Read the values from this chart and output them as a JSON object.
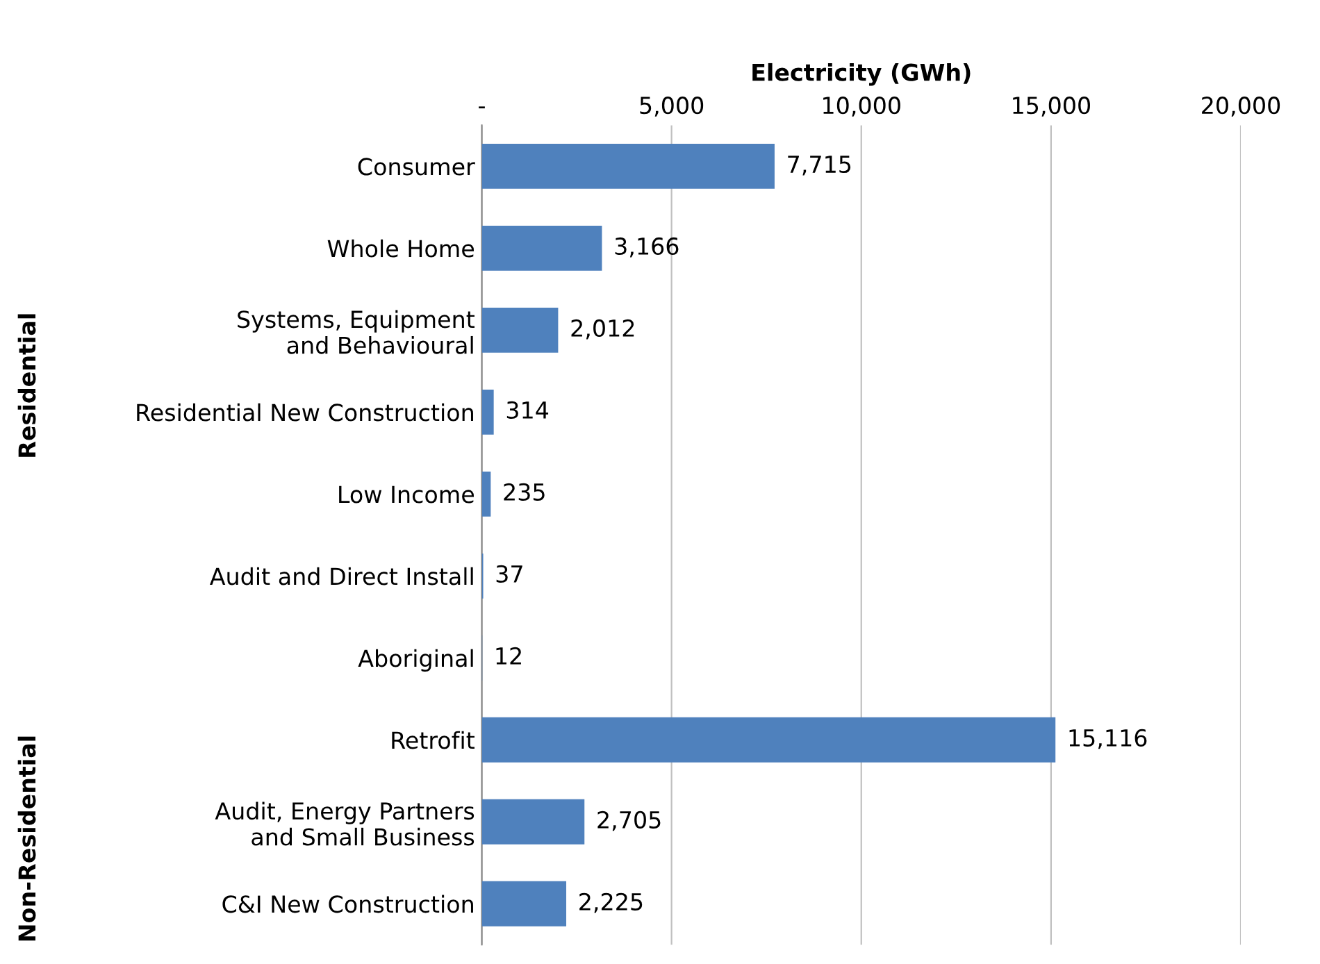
{
  "chart_data": {
    "type": "bar",
    "orientation": "horizontal",
    "xlabel": "Electricity (GWh)",
    "categories": [
      "Consumer",
      "Whole Home",
      "Systems, Equipment\nand Behavioural",
      "Residential New Construction",
      "Low Income",
      "Audit and Direct Install",
      "Aboriginal",
      "Retrofit",
      "Audit, Energy Partners\nand Small Business",
      "C&I New Construction"
    ],
    "values": [
      7715,
      3166,
      2012,
      314,
      235,
      37,
      12,
      15116,
      2705,
      2225
    ],
    "value_labels": [
      "7,715",
      "3,166",
      "2,012",
      "314",
      "235",
      "37",
      "12",
      "15,116",
      "2,705",
      "2,225"
    ],
    "color": "#4f81bd",
    "xlim": [
      0,
      20000
    ],
    "xticks": [
      {
        "value": 0,
        "label": "-"
      },
      {
        "value": 5000,
        "label": "5,000"
      },
      {
        "value": 10000,
        "label": "10,000"
      },
      {
        "value": 15000,
        "label": "15,000"
      },
      {
        "value": 20000,
        "label": "20,000"
      }
    ],
    "grid": "x",
    "annotations": [
      "Residential",
      "Non-Residential"
    ]
  }
}
